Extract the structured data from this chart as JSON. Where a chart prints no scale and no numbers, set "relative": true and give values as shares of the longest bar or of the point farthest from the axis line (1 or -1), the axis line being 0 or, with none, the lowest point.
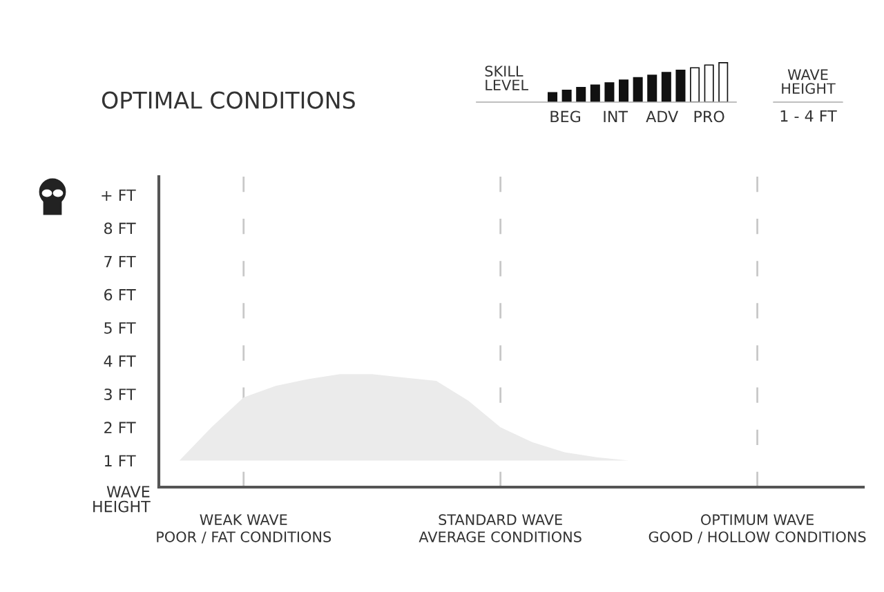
{
  "chart_data": [
    {
      "type": "area",
      "title": "OPTIMAL CONDITIONS",
      "ylabel": "WAVE\nHEIGHT",
      "categories": [
        null,
        null,
        "WEAK WAVE\nPOOR / FAT CONDITIONS",
        null,
        null,
        null,
        null,
        null,
        null,
        null,
        "STANDARD WAVE\nAVERAGE CONDITIONS",
        null,
        null,
        null,
        null,
        null,
        null,
        null,
        "OPTIMUM WAVE\nGOOD / HOLLOW CONDITIONS",
        null,
        null,
        null
      ],
      "series": [
        {
          "color": "#ebebeb",
          "values": [
            1.0,
            2.0,
            2.9,
            3.25,
            3.45,
            3.6,
            3.6,
            3.5,
            3.4,
            2.8,
            2.0,
            1.55,
            1.25,
            1.1,
            1.0,
            null,
            null,
            null,
            null,
            null,
            null,
            null
          ]
        }
      ],
      "ylim": [
        0.2,
        9.55
      ],
      "yticks": [
        {
          "value": 1,
          "label": "1 FT"
        },
        {
          "value": 2,
          "label": "2 FT"
        },
        {
          "value": 3,
          "label": "3 FT"
        },
        {
          "value": 4,
          "label": "4 FT"
        },
        {
          "value": 5,
          "label": "5 FT"
        },
        {
          "value": 6,
          "label": "6 FT"
        },
        {
          "value": 7,
          "label": "7 FT"
        },
        {
          "value": 8,
          "label": "8 FT"
        },
        {
          "value": 9,
          "label": "+ FT"
        }
      ],
      "annotations": [
        "WAVE\nHEIGHT",
        "1 - 4 FT"
      ],
      "grid": "x",
      "line_style": "dashed"
    },
    {
      "type": "bar",
      "relative": true,
      "ylabel": "SKILL\nLEVEL",
      "categories": [
        null,
        null,
        null,
        null,
        null,
        null,
        null,
        null,
        null,
        null,
        null,
        null,
        null
      ],
      "values": [
        0.24,
        0.3,
        0.37,
        0.43,
        0.49,
        0.56,
        0.62,
        0.68,
        0.75,
        0.81,
        0.87,
        0.94,
        1.0
      ],
      "colors": [
        "#111111",
        "#111111",
        "#111111",
        "#111111",
        "#111111",
        "#111111",
        "#111111",
        "#111111",
        "#111111",
        "#111111",
        "#ffffff",
        "#ffffff",
        "#ffffff"
      ],
      "annotations": [
        "BEG",
        "INT",
        "ADV",
        "PRO"
      ]
    }
  ]
}
